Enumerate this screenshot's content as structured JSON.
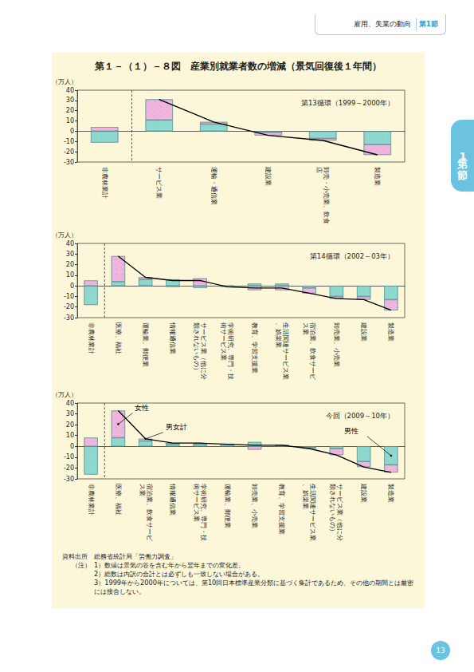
{
  "header": {
    "section": "雇用、失業の動向",
    "badge": "第1節"
  },
  "side_tab": "第1節",
  "title": "第１－（１）－８図　産業別就業者数の増減（景気回復後１年間）",
  "chart_data": [
    {
      "type": "bar",
      "stacked": true,
      "grid": false,
      "subtitle": "第13循環（1999～2000年）",
      "y_label": "（万人）",
      "categories": [
        "非農林業計",
        "サービス業",
        "運輸・通信業",
        "建設業",
        "卸売・小売業、飲食店",
        "製造業"
      ],
      "series": [
        {
          "name": "男性",
          "color": "#8fd8d0",
          "values": [
            -11,
            11,
            7,
            -1,
            -7,
            -13
          ]
        },
        {
          "name": "女性",
          "color": "#f0b4e0",
          "values": [
            4,
            20,
            2,
            -3,
            -2,
            -10
          ]
        },
        {
          "name": "男女計",
          "type": "line",
          "color": "#000000",
          "values": [
            null,
            31,
            9,
            -4,
            -9,
            -23
          ]
        }
      ],
      "ylim": [
        -30,
        40
      ],
      "yticks": [
        -30,
        -20,
        -10,
        0,
        10,
        20,
        30,
        40
      ]
    },
    {
      "type": "bar",
      "stacked": true,
      "grid": false,
      "subtitle": "第14循環（2002～03年）",
      "y_label": "（万人）",
      "categories": [
        "非農林業計",
        "医療、福祉",
        "運輸業、郵便業",
        "情報通信業",
        "サービス業（他に分類されないもの）",
        "学術研究、専門・技術サービス業",
        "教育、学習支援業",
        "生活関連サービス業、娯楽業",
        "宿泊業、飲食サービス業",
        "卸売業、小売業",
        "建設業",
        "製造業"
      ],
      "series": [
        {
          "name": "男性",
          "color": "#8fd8d0",
          "values": [
            -18,
            4,
            6,
            6,
            -2,
            0,
            2,
            2,
            -2,
            -10,
            -10,
            -13
          ]
        },
        {
          "name": "女性",
          "color": "#f0b4e0",
          "values": [
            5,
            24,
            2,
            -1,
            7,
            -1,
            -4,
            -4,
            -5,
            -2,
            -3,
            -10
          ]
        },
        {
          "name": "男女計",
          "type": "line",
          "color": "#000000",
          "values": [
            null,
            28,
            8,
            5,
            5,
            -1,
            -2,
            -2,
            -7,
            -12,
            -13,
            -23
          ]
        }
      ],
      "ylim": [
        -30,
        40
      ],
      "yticks": [
        -30,
        -20,
        -10,
        0,
        10,
        20,
        30,
        40
      ]
    },
    {
      "type": "bar",
      "stacked": true,
      "grid": false,
      "subtitle": "今回（2009～10年）",
      "y_label": "（万人）",
      "categories": [
        "非農林業計",
        "医療、福祉",
        "宿泊業、飲食サービス業",
        "情報通信業",
        "学術研究、専門・技術サービス業",
        "運輸業、郵便業",
        "卸売業、小売業",
        "教育、学習支援業",
        "生活関連サービス業、娯楽業",
        "サービス業（他に分類されないもの）",
        "建設業",
        "製造業"
      ],
      "series": [
        {
          "name": "男性",
          "color": "#8fd8d0",
          "values": [
            -26,
            8,
            5,
            2,
            2,
            2,
            4,
            1,
            -1,
            -2,
            -14,
            -17
          ]
        },
        {
          "name": "女性",
          "color": "#f0b4e0",
          "values": [
            8,
            25,
            2,
            1,
            1,
            0,
            -3,
            0,
            -1,
            -6,
            -5,
            -7
          ]
        },
        {
          "name": "男女計",
          "type": "line",
          "color": "#000000",
          "values": [
            null,
            33,
            7,
            3,
            3,
            2,
            1,
            1,
            -2,
            -8,
            -19,
            -24
          ]
        }
      ],
      "annotations": [
        {
          "text": "女性",
          "category": "医療、福祉",
          "series": "女性"
        },
        {
          "text": "男女計",
          "category": "宿泊業、飲食サービス業",
          "series": "男女計"
        },
        {
          "text": "男性",
          "category": "製造業",
          "series": "男性"
        }
      ],
      "ylim": [
        -30,
        40
      ],
      "yticks": [
        -30,
        -20,
        -10,
        0,
        10,
        20,
        30,
        40
      ]
    }
  ],
  "source": "資料出所　総務省統計局「労働力調査」",
  "notes_label": "（注）",
  "notes": [
    "1）数値は景気の谷を含む年から翌年までの変化差。",
    "2）総数は内訳の合計とは必ずしも一致しない場合がある。",
    "3）1999年から2000年については、第10回日本標準産業分類に基づく集計であるため、その他の期間とは厳密には接合しない。"
  ],
  "page_number": 13
}
